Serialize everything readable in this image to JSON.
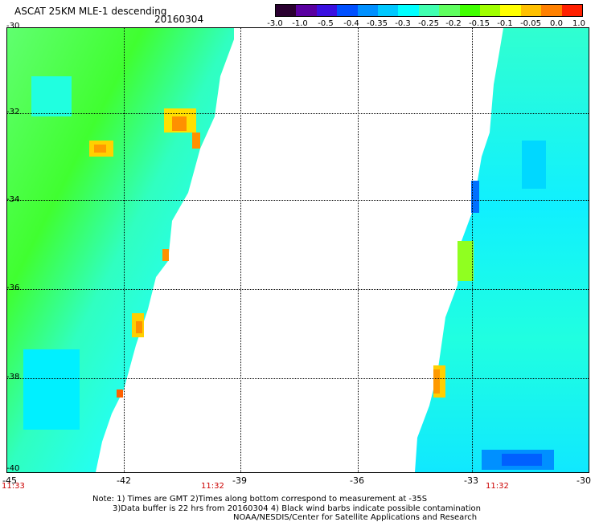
{
  "header": {
    "title": "ASCAT 25KM MLE-1 descending",
    "date": "20160304"
  },
  "colorbar": {
    "colors": [
      "#2a0030",
      "#5a00a0",
      "#3a10e0",
      "#0050ff",
      "#0090ff",
      "#00c8ff",
      "#00ffff",
      "#40ffb0",
      "#60ff60",
      "#40ff00",
      "#a0ff00",
      "#ffff00",
      "#ffc000",
      "#ff8000",
      "#ff2000"
    ],
    "ticks": [
      "-3.0",
      "-1.0",
      "-0.5",
      "-0.4",
      "-0.35",
      "-0.3",
      "-0.25",
      "-0.2",
      "-0.15",
      "-0.1",
      "-0.05",
      "0.0",
      "1.0"
    ]
  },
  "axes": {
    "x_ticks": [
      "-45",
      "-42",
      "-39",
      "-36",
      "-33",
      "-30"
    ],
    "y_ticks": [
      "-30",
      "-32",
      "-34",
      "-36",
      "-38",
      "-40"
    ]
  },
  "times": {
    "left": "11:33",
    "mid": "11:32",
    "right": "11:32"
  },
  "notes": {
    "line1": "Note: 1) Times are GMT 2)Times along bottom correspond to measurement at -35S",
    "line2": "3)Data buffer is 22 hrs from 20160304 4) Black wind barbs indicate possible contamination",
    "line3": "NOAA/NESDIS/Center for Satellite Applications and Research"
  }
}
